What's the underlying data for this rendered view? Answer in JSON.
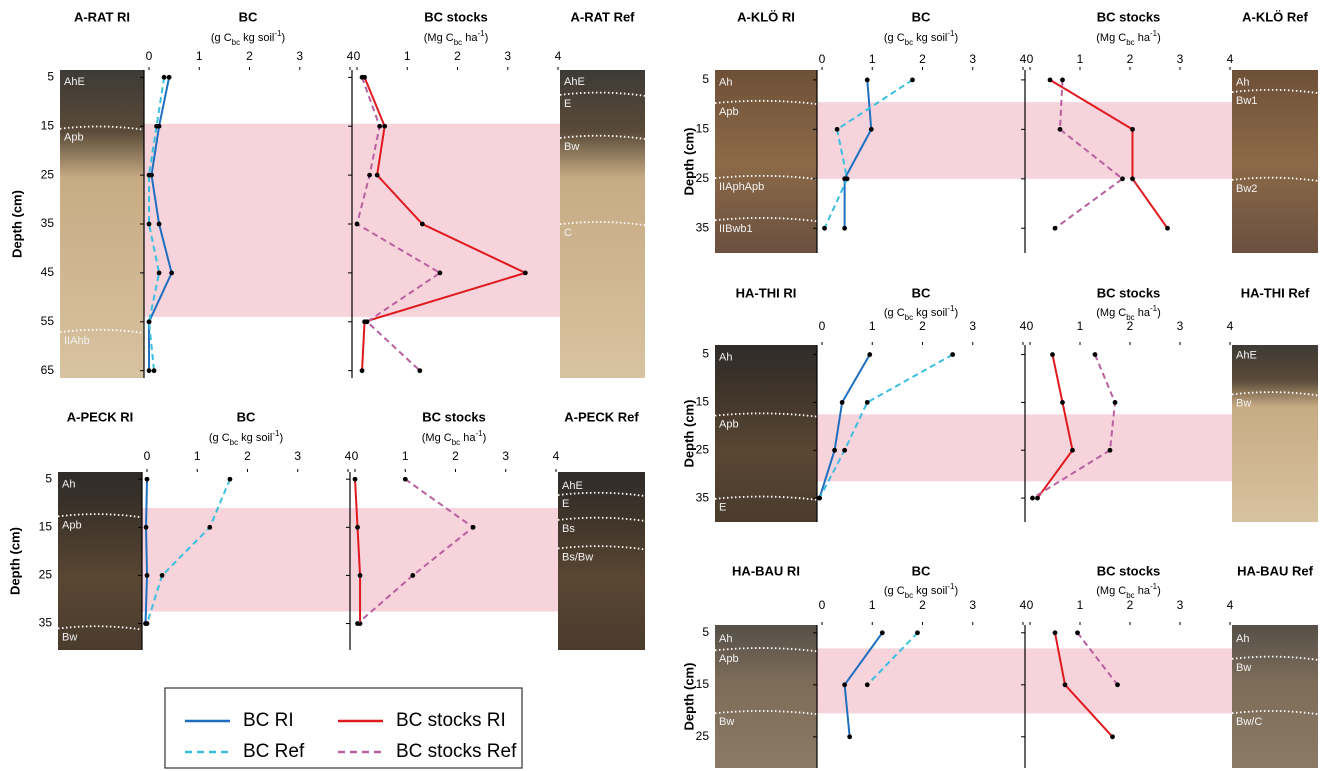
{
  "chart_data": [
    {
      "type": "line",
      "ri_label": "A-RAT RI",
      "ref_label": "A-RAT Ref",
      "ri_horizons": [
        "AhE",
        "Apb",
        "IIAhb"
      ],
      "ref_horizons": [
        "AhE",
        "E",
        "Bw",
        "C"
      ],
      "ylabel": "Depth (cm)",
      "depths": [
        5,
        15,
        25,
        35,
        45,
        55,
        65
      ],
      "ylim": [
        3.5,
        66.5
      ],
      "yticks": [
        5,
        15,
        25,
        35,
        45,
        55,
        65
      ],
      "highlight": [
        14.5,
        54
      ],
      "charts": [
        {
          "title": "BC",
          "xlabel": [
            "(g C",
            "bc",
            " kg soil",
            "-1",
            ")"
          ],
          "xlim": [
            -0.1,
            4
          ],
          "xticks": [
            0,
            1,
            2,
            3,
            4
          ],
          "series": [
            {
              "color": "#1f6fc0",
              "dashed": false,
              "values": [
                0.4,
                0.2,
                0.05,
                0.2,
                0.45,
                0.0,
                0.0
              ]
            },
            {
              "color": "#3bbfdf",
              "dashed": true,
              "values": [
                0.3,
                0.15,
                0.0,
                0.0,
                0.2,
                0.0,
                0.1
              ]
            }
          ]
        },
        {
          "title": "BC stocks",
          "xlabel": [
            "(Mg C",
            "bc",
            " ha",
            "-1",
            ")"
          ],
          "xlim": [
            -0.1,
            4
          ],
          "xticks": [
            0,
            1,
            2,
            3,
            4
          ],
          "series": [
            {
              "color": "#e0191f",
              "dashed": false,
              "values": [
                0.15,
                0.55,
                0.4,
                1.3,
                3.35,
                0.15,
                0.1
              ]
            },
            {
              "color": "#b9609f",
              "dashed": true,
              "values": [
                0.1,
                0.45,
                0.25,
                0.0,
                1.65,
                0.2,
                1.25
              ]
            }
          ]
        }
      ]
    },
    {
      "type": "line",
      "ri_label": "A-PECK RI",
      "ref_label": "A-PECK Ref",
      "ri_horizons": [
        "Ah",
        "Apb",
        "Bw"
      ],
      "ref_horizons": [
        "AhE",
        "E",
        "Bs",
        "Bs/Bw"
      ],
      "ylabel": "Depth (cm)",
      "depths": [
        5,
        15,
        25,
        35
      ],
      "ylim": [
        3.5,
        40.5
      ],
      "yticks": [
        5,
        15,
        25,
        35
      ],
      "highlight": [
        11,
        32.5
      ],
      "charts": [
        {
          "title": "BC",
          "xlabel": [
            "(g C",
            "bc",
            " kg soil",
            "-1",
            ")"
          ],
          "xlim": [
            -0.1,
            4
          ],
          "xticks": [
            0,
            1,
            2,
            3,
            4
          ],
          "series": [
            {
              "color": "#1f6fc0",
              "dashed": false,
              "values": [
                0.0,
                -0.02,
                0.0,
                -0.03
              ]
            },
            {
              "color": "#3bbfdf",
              "dashed": true,
              "values": [
                1.65,
                1.25,
                0.3,
                0.0
              ]
            }
          ]
        },
        {
          "title": "BC stocks",
          "xlabel": [
            "(Mg C",
            "bc",
            " ha",
            "-1",
            ")"
          ],
          "xlim": [
            -0.1,
            4
          ],
          "xticks": [
            0,
            1,
            2,
            3,
            4
          ],
          "series": [
            {
              "color": "#e0191f",
              "dashed": false,
              "values": [
                0.0,
                0.05,
                0.1,
                0.1
              ]
            },
            {
              "color": "#b9609f",
              "dashed": true,
              "values": [
                1.0,
                2.35,
                1.15,
                0.05
              ]
            }
          ]
        }
      ]
    },
    {
      "type": "line",
      "ri_label": "A-KLÖ RI",
      "ref_label": "A-KLÖ Ref",
      "ri_horizons": [
        "Ah",
        "Apb",
        "IIAphApb",
        "IIBwb1"
      ],
      "ref_horizons": [
        "Ah",
        "Bw1",
        "Bw2"
      ],
      "ylabel": "Depth (cm)",
      "depths": [
        5,
        15,
        25,
        35
      ],
      "ylim": [
        3,
        40
      ],
      "yticks": [
        5,
        15,
        25,
        35
      ],
      "highlight": [
        9.5,
        25
      ],
      "charts": [
        {
          "title": "BC",
          "xlabel": [
            "(g C",
            "bc",
            " kg soil",
            "-1",
            ")"
          ],
          "xlim": [
            -0.1,
            4
          ],
          "xticks": [
            0,
            1,
            2,
            3,
            4
          ],
          "series": [
            {
              "color": "#1f6fc0",
              "dashed": false,
              "values": [
                0.9,
                0.98,
                0.45,
                0.45
              ]
            },
            {
              "color": "#3bbfdf",
              "dashed": true,
              "values": [
                1.8,
                0.3,
                0.5,
                0.05
              ]
            }
          ]
        },
        {
          "title": "BC stocks",
          "xlabel": [
            "(Mg C",
            "bc",
            " ha",
            "-1",
            ")"
          ],
          "xlim": [
            -0.1,
            4
          ],
          "xticks": [
            0,
            1,
            2,
            3,
            4
          ],
          "series": [
            {
              "color": "#e0191f",
              "dashed": false,
              "values": [
                0.4,
                2.05,
                2.05,
                2.75
              ]
            },
            {
              "color": "#b9609f",
              "dashed": true,
              "values": [
                0.65,
                0.6,
                1.85,
                0.5
              ]
            }
          ]
        }
      ]
    },
    {
      "type": "line",
      "ri_label": "HA-THI RI",
      "ref_label": "HA-THI Ref",
      "ri_horizons": [
        "Ah",
        "Apb",
        "E"
      ],
      "ref_horizons": [
        "AhE",
        "Bw"
      ],
      "ylabel": "Depth (cm)",
      "depths": [
        5,
        15,
        25,
        35
      ],
      "ylim": [
        3,
        40
      ],
      "yticks": [
        5,
        15,
        25,
        35
      ],
      "highlight": [
        17.5,
        31.5
      ],
      "charts": [
        {
          "title": "BC",
          "xlabel": [
            "(g C",
            "bc",
            " kg soil",
            "-1",
            ")"
          ],
          "xlim": [
            -0.1,
            4
          ],
          "xticks": [
            0,
            1,
            2,
            3,
            4
          ],
          "series": [
            {
              "color": "#1f6fc0",
              "dashed": false,
              "values": [
                0.95,
                0.4,
                0.25,
                -0.05
              ]
            },
            {
              "color": "#3bbfdf",
              "dashed": true,
              "values": [
                2.6,
                0.9,
                0.45,
                -0.05
              ]
            }
          ]
        },
        {
          "title": "BC stocks",
          "xlabel": [
            "(Mg C",
            "bc",
            " ha",
            "-1",
            ")"
          ],
          "xlim": [
            -0.1,
            4
          ],
          "xticks": [
            0,
            1,
            2,
            3,
            4
          ],
          "series": [
            {
              "color": "#e0191f",
              "dashed": false,
              "values": [
                0.45,
                0.65,
                0.85,
                0.15
              ]
            },
            {
              "color": "#b9609f",
              "dashed": true,
              "values": [
                1.3,
                1.7,
                1.6,
                0.05
              ]
            }
          ]
        }
      ]
    },
    {
      "type": "line",
      "ri_label": "HA-BAU RI",
      "ref_label": "HA-BAU Ref",
      "ri_horizons": [
        "Ah",
        "Apb",
        "Bw"
      ],
      "ref_horizons": [
        "Ah",
        "Bw",
        "Bw/C"
      ],
      "ylabel": "Depth (cm)",
      "depths": [
        5,
        15,
        25
      ],
      "ylim": [
        3.5,
        31
      ],
      "yticks": [
        5,
        15,
        25
      ],
      "highlight": [
        8,
        20.5
      ],
      "charts": [
        {
          "title": "BC",
          "xlabel": [
            "(g C",
            "bc",
            " kg soil",
            "-1",
            ")"
          ],
          "xlim": [
            -0.1,
            4
          ],
          "xticks": [
            0,
            1,
            2,
            3,
            4
          ],
          "series": [
            {
              "color": "#1f6fc0",
              "dashed": false,
              "values": [
                1.2,
                0.45,
                0.55
              ]
            },
            {
              "color": "#3bbfdf",
              "dashed": true,
              "values": [
                1.9,
                0.9,
                null
              ]
            }
          ]
        },
        {
          "title": "BC stocks",
          "xlabel": [
            "(Mg C",
            "bc",
            " ha",
            "-1",
            ")"
          ],
          "xlim": [
            -0.1,
            4
          ],
          "xticks": [
            0,
            1,
            2,
            3,
            4
          ],
          "series": [
            {
              "color": "#e0191f",
              "dashed": false,
              "values": [
                0.5,
                0.7,
                1.65
              ]
            },
            {
              "color": "#b9609f",
              "dashed": true,
              "values": [
                0.95,
                1.75,
                null
              ]
            }
          ]
        }
      ]
    }
  ],
  "legend": {
    "items": [
      {
        "label": "BC RI",
        "color": "#1f6fc0",
        "dashed": false
      },
      {
        "label": "BC stocks RI",
        "color": "#e0191f",
        "dashed": false
      },
      {
        "label": "BC Ref",
        "color": "#3bbfdf",
        "dashed": true
      },
      {
        "label": "BC stocks Ref",
        "color": "#b9609f",
        "dashed": true
      }
    ]
  }
}
